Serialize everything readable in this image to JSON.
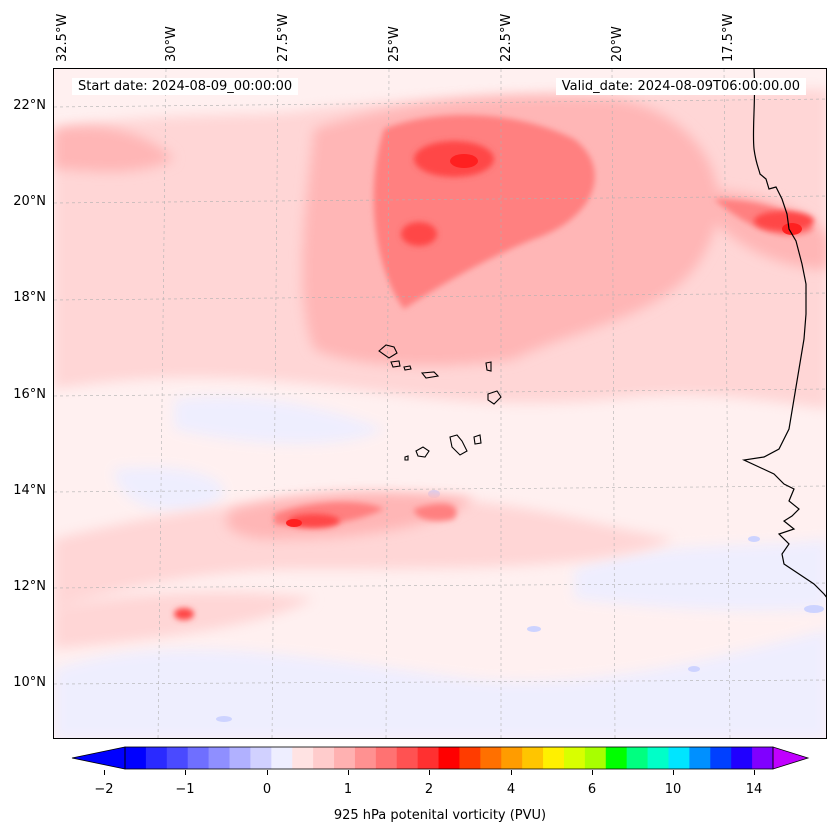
{
  "map": {
    "start_date": "Start date: 2024-08-09_00:00:00",
    "valid_date": "Valid_date: 2024-08-09T06:00:00.00",
    "lon_labels": [
      "32.5°W",
      "30°W",
      "27.5°W",
      "25°W",
      "22.5°W",
      "20°W",
      "17.5°W"
    ],
    "lat_labels": [
      "22°N",
      "20°N",
      "18°N",
      "16°N",
      "14°N",
      "12°N",
      "10°N"
    ],
    "extent": {
      "lon": [
        -32.5,
        -15.2
      ],
      "lat": [
        8.9,
        22.8
      ]
    },
    "field_colors": {
      "neg_light": "#eeeeff",
      "neg_med": "#cdd3ff",
      "zero_band": "#fff0f0",
      "low": "#ffd6d6",
      "mid_low": "#ffb6b6",
      "mid": "#ff9494",
      "mid_high": "#ff7070",
      "high": "#ff4747",
      "max": "#ff2020"
    }
  },
  "colorbar": {
    "label": "925 hPa potenital vorticity (PVU)",
    "tick_labels": [
      "−2",
      "−1",
      "0",
      "1",
      "2",
      "4",
      "6",
      "10",
      "14"
    ],
    "colors": [
      "#0000ff",
      "#2a2aff",
      "#4a4aff",
      "#6f6fff",
      "#8f8fff",
      "#b1b1ff",
      "#d1d1ff",
      "#eeeeff",
      "#ffe3e3",
      "#ffcccc",
      "#ffb1b1",
      "#ff9191",
      "#ff7272",
      "#ff5252",
      "#ff3030",
      "#ff0000",
      "#ff3c00",
      "#ff7000",
      "#ff9c00",
      "#ffc500",
      "#fff000",
      "#d8ff00",
      "#a8ff00",
      "#00ff00",
      "#00ff80",
      "#00ffc8",
      "#00e5ff",
      "#0090ff",
      "#0040ff",
      "#2000ff",
      "#8000ff"
    ],
    "extend_min_color": "#0000ff",
    "extend_max_color": "#c000ff"
  }
}
